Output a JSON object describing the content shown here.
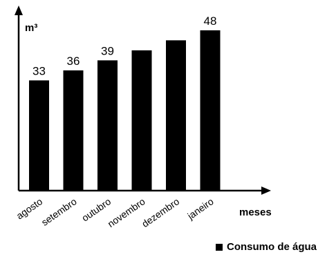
{
  "chart_data": {
    "type": "bar",
    "categories": [
      "agosto",
      "setembro",
      "outubro",
      "novembro",
      "dezembro",
      "janeiro"
    ],
    "values": [
      33,
      36,
      39,
      42,
      45,
      48
    ],
    "data_labels": [
      "33",
      "36",
      "39",
      "",
      "",
      "48"
    ],
    "ylabel": "m³",
    "xlabel": "meses",
    "legend": "Consumo de água",
    "bar_color": "#000000",
    "ylim": [
      0,
      55
    ],
    "grid": false
  }
}
